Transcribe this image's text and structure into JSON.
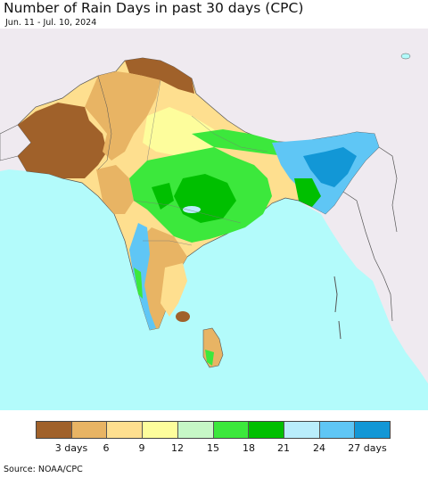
{
  "header": {
    "title": "Number of Rain Days in past 30 days (CPC)",
    "date_range": "Jun. 11 - Jul. 10, 2024"
  },
  "legend": {
    "colors": [
      "#a0612a",
      "#e8b464",
      "#fedf8f",
      "#fdfd9c",
      "#c6f7c6",
      "#3ce83c",
      "#00bf00",
      "#b9edfb",
      "#5fc6f5",
      "#1297d6"
    ],
    "tick_labels": [
      "3 days",
      "6",
      "9",
      "12",
      "15",
      "18",
      "21",
      "24",
      "27 days"
    ]
  },
  "footer": {
    "source": "Source: NOAA/CPC"
  },
  "map_colors": {
    "ocean": "#b3fbfb",
    "land_outside": "#efeaf0",
    "border": "#555555"
  }
}
